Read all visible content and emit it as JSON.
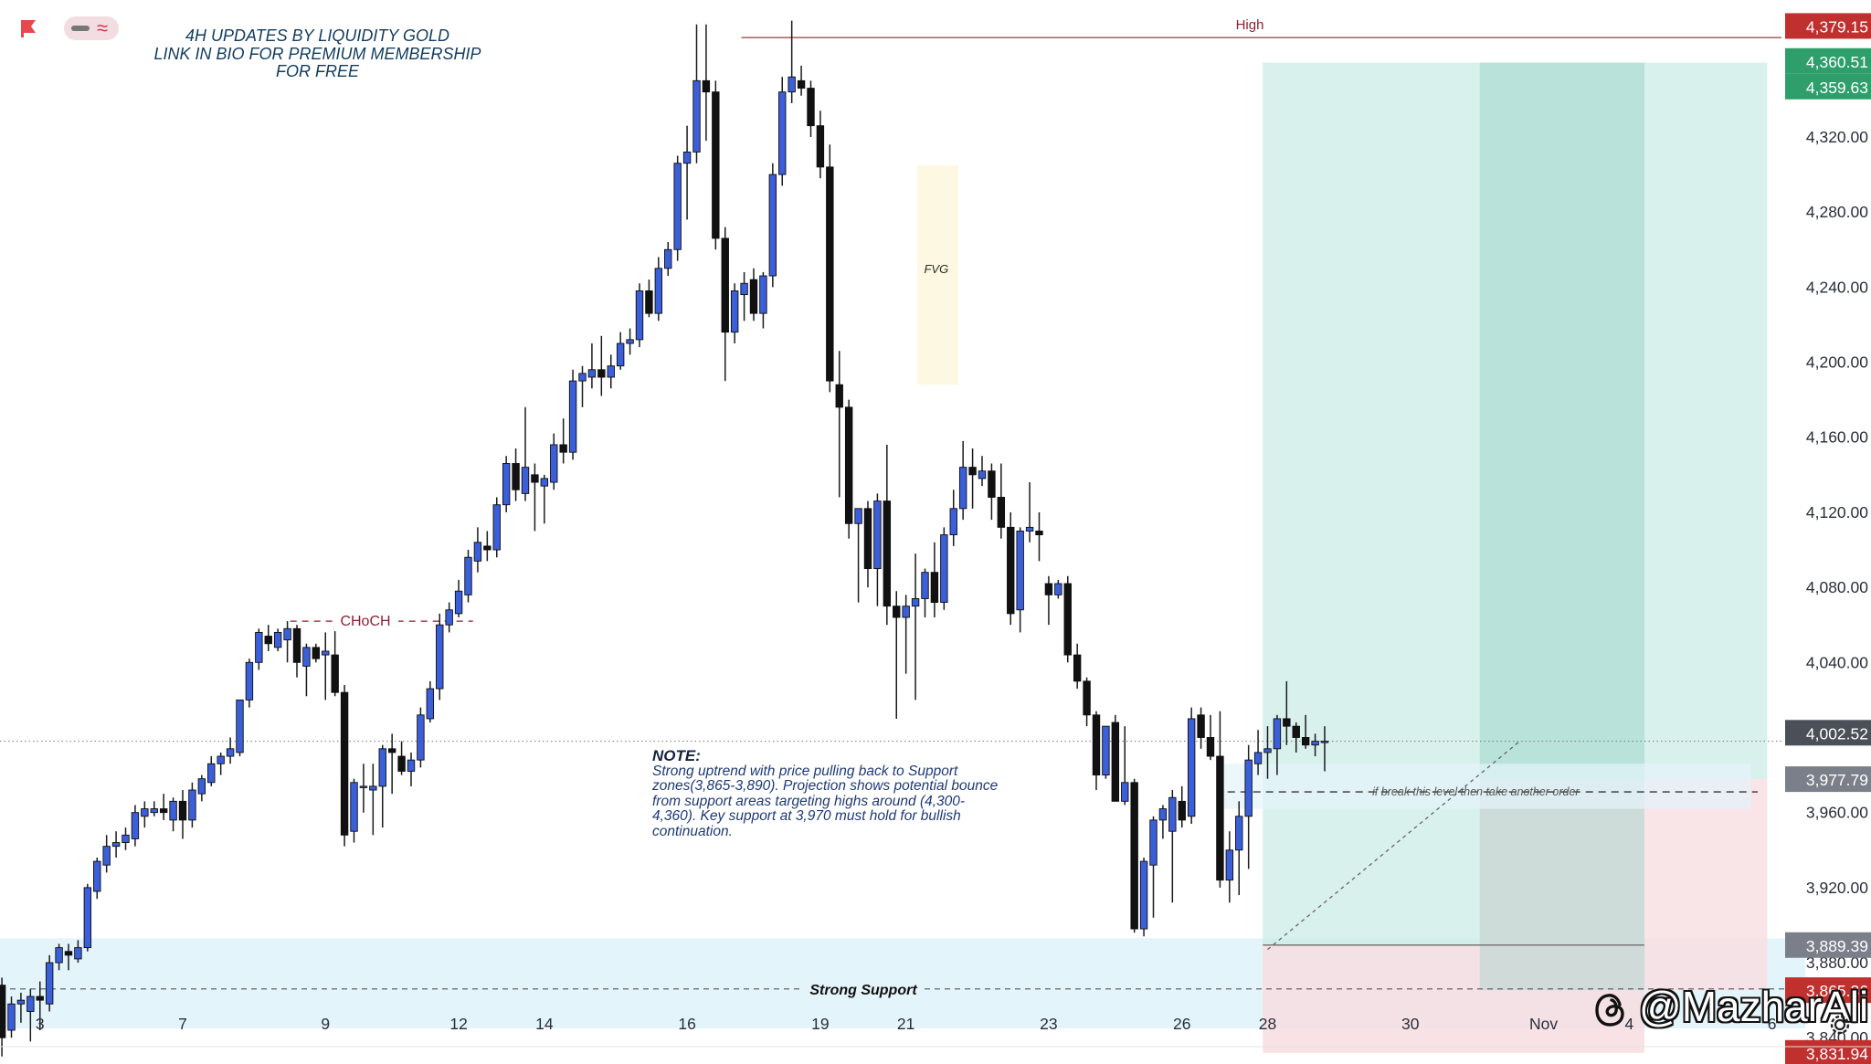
{
  "header": {
    "line1": "4H UPDATES BY LIQUIDITY GOLD",
    "line2": "LINK IN BIO FOR PREMIUM MEMBERSHIP",
    "line3": "FOR FREE"
  },
  "note": {
    "title": "NOTE:",
    "lines": [
      "Strong uptrend with price pulling back to Support",
      "zones(3,865-3,890). Projection shows potential bounce",
      "from support areas targeting highs around (4,300-",
      "4,360). Key support at 3,970 must hold for bullish",
      "continuation."
    ]
  },
  "watermark": {
    "text": "@MazharAli",
    "icon": "threads-icon"
  },
  "toolbar_icons": [
    "flag-icon",
    "minus-icon",
    "wave-icon"
  ],
  "colors": {
    "bull": "#3b5fd9",
    "bear": "#111111",
    "take_profit_zone": "#c9ebe4",
    "stop_loss_zone": "#f7dde2",
    "support_zone": "#e4f4fb",
    "fvg_zone": "#fdf8e1",
    "high_line": "#9a3a3a",
    "price_tag_green": "#2e9e6b",
    "price_tag_red": "#c0302f",
    "price_tag_gray": "#7b7f8a",
    "price_tag_dark": "#4b4f58"
  },
  "chart_data": {
    "type": "candlestick",
    "timeframe": "4H",
    "ylim": [
      3826,
      4393
    ],
    "y_ticks": [
      3840,
      3880,
      3920,
      3960,
      4000,
      4040,
      4080,
      4120,
      4160,
      4200,
      4240,
      4280,
      4320
    ],
    "y_tick_labels": [
      "3,840.00",
      "3,880.00",
      "3,920.00",
      "3,960.00",
      "4,000.00",
      "4,040.00",
      "4,080.00",
      "4,120.00",
      "4,160.00",
      "4,200.00",
      "4,240.00",
      "4,280.00",
      "4,320.00"
    ],
    "x_range": [
      -0.2,
      187
    ],
    "x_ticks": [
      {
        "label": "3",
        "bar": 4
      },
      {
        "label": "7",
        "bar": 19
      },
      {
        "label": "9",
        "bar": 34
      },
      {
        "label": "12",
        "bar": 48
      },
      {
        "label": "14",
        "bar": 57
      },
      {
        "label": "16",
        "bar": 72
      },
      {
        "label": "19",
        "bar": 86
      },
      {
        "label": "21",
        "bar": 95
      },
      {
        "label": "23",
        "bar": 110
      },
      {
        "label": "26",
        "bar": 124
      },
      {
        "label": "28",
        "bar": 133
      },
      {
        "label": "30",
        "bar": 148
      },
      {
        "label": "Nov",
        "bar": 162
      },
      {
        "label": "4",
        "bar": 171
      },
      {
        "label": "6",
        "bar": 186
      }
    ],
    "candles": [
      [
        3868,
        3872,
        3830,
        3840
      ],
      [
        3844,
        3862,
        3840,
        3858
      ],
      [
        3858,
        3864,
        3848,
        3860
      ],
      [
        3854,
        3866,
        3838,
        3862
      ],
      [
        3862,
        3870,
        3844,
        3860
      ],
      [
        3858,
        3884,
        3854,
        3880
      ],
      [
        3880,
        3890,
        3876,
        3888
      ],
      [
        3886,
        3890,
        3876,
        3884
      ],
      [
        3882,
        3892,
        3880,
        3888
      ],
      [
        3888,
        3922,
        3886,
        3920
      ],
      [
        3918,
        3936,
        3914,
        3934
      ],
      [
        3932,
        3948,
        3928,
        3942
      ],
      [
        3942,
        3950,
        3936,
        3944
      ],
      [
        3944,
        3952,
        3940,
        3948
      ],
      [
        3946,
        3964,
        3942,
        3960
      ],
      [
        3958,
        3966,
        3952,
        3962
      ],
      [
        3960,
        3966,
        3958,
        3962
      ],
      [
        3962,
        3970,
        3956,
        3960
      ],
      [
        3956,
        3968,
        3950,
        3966
      ],
      [
        3966,
        3972,
        3946,
        3956
      ],
      [
        3956,
        3976,
        3952,
        3972
      ],
      [
        3970,
        3980,
        3966,
        3978
      ],
      [
        3976,
        3990,
        3974,
        3986
      ],
      [
        3986,
        3992,
        3980,
        3990
      ],
      [
        3990,
        4000,
        3986,
        3994
      ],
      [
        3992,
        4020,
        3990,
        4020
      ],
      [
        4020,
        4042,
        4016,
        4040
      ],
      [
        4040,
        4058,
        4036,
        4056
      ],
      [
        4054,
        4060,
        4046,
        4050
      ],
      [
        4048,
        4058,
        4046,
        4056
      ],
      [
        4052,
        4062,
        4040,
        4058
      ],
      [
        4058,
        4060,
        4032,
        4040
      ],
      [
        4038,
        4050,
        4022,
        4048
      ],
      [
        4048,
        4050,
        4040,
        4042
      ],
      [
        4044,
        4056,
        4020,
        4046
      ],
      [
        4044,
        4060,
        4022,
        4024
      ],
      [
        4024,
        4028,
        3942,
        3948
      ],
      [
        3950,
        3978,
        3944,
        3976
      ],
      [
        3974,
        3986,
        3960,
        3974
      ],
      [
        3972,
        3986,
        3948,
        3974
      ],
      [
        3974,
        3996,
        3952,
        3994
      ],
      [
        3994,
        4002,
        3970,
        3992
      ],
      [
        3990,
        3998,
        3980,
        3982
      ],
      [
        3982,
        3992,
        3974,
        3988
      ],
      [
        3988,
        4016,
        3984,
        4012
      ],
      [
        4010,
        4030,
        4008,
        4026
      ],
      [
        4026,
        4066,
        4020,
        4060
      ],
      [
        4060,
        4072,
        4056,
        4068
      ],
      [
        4066,
        4084,
        4064,
        4078
      ],
      [
        4076,
        4100,
        4072,
        4096
      ],
      [
        4094,
        4112,
        4088,
        4104
      ],
      [
        4102,
        4110,
        4094,
        4100
      ],
      [
        4100,
        4128,
        4096,
        4124
      ],
      [
        4124,
        4150,
        4120,
        4146
      ],
      [
        4146,
        4154,
        4126,
        4132
      ],
      [
        4130,
        4176,
        4126,
        4144
      ],
      [
        4140,
        4146,
        4110,
        4136
      ],
      [
        4134,
        4140,
        4114,
        4138
      ],
      [
        4136,
        4162,
        4132,
        4156
      ],
      [
        4156,
        4170,
        4146,
        4152
      ],
      [
        4152,
        4196,
        4148,
        4190
      ],
      [
        4190,
        4198,
        4176,
        4194
      ],
      [
        4192,
        4210,
        4186,
        4196
      ],
      [
        4196,
        4214,
        4182,
        4192
      ],
      [
        4192,
        4204,
        4186,
        4198
      ],
      [
        4198,
        4216,
        4196,
        4210
      ],
      [
        4210,
        4218,
        4204,
        4212
      ],
      [
        4212,
        4242,
        4208,
        4238
      ],
      [
        4238,
        4244,
        4224,
        4226
      ],
      [
        4226,
        4256,
        4222,
        4250
      ],
      [
        4250,
        4264,
        4246,
        4260
      ],
      [
        4260,
        4310,
        4254,
        4306
      ],
      [
        4306,
        4326,
        4276,
        4312
      ],
      [
        4312,
        4380,
        4306,
        4350
      ],
      [
        4350,
        4380,
        4318,
        4344
      ],
      [
        4344,
        4350,
        4260,
        4266
      ],
      [
        4266,
        4272,
        4190,
        4216
      ],
      [
        4216,
        4242,
        4210,
        4238
      ],
      [
        4236,
        4248,
        4222,
        4242
      ],
      [
        4244,
        4250,
        4222,
        4226
      ],
      [
        4226,
        4248,
        4218,
        4246
      ],
      [
        4246,
        4306,
        4240,
        4300
      ],
      [
        4300,
        4352,
        4294,
        4344
      ],
      [
        4344,
        4382,
        4338,
        4352
      ],
      [
        4350,
        4358,
        4342,
        4346
      ],
      [
        4346,
        4350,
        4320,
        4326
      ],
      [
        4326,
        4334,
        4298,
        4304
      ],
      [
        4304,
        4316,
        4184,
        4190
      ],
      [
        4188,
        4206,
        4128,
        4176
      ],
      [
        4176,
        4180,
        4106,
        4114
      ],
      [
        4114,
        4122,
        4072,
        4122
      ],
      [
        4122,
        4126,
        4080,
        4090
      ],
      [
        4090,
        4130,
        4070,
        4126
      ],
      [
        4126,
        4156,
        4060,
        4070
      ],
      [
        4070,
        4078,
        4010,
        4064
      ],
      [
        4064,
        4076,
        4034,
        4070
      ],
      [
        4070,
        4098,
        4020,
        4074
      ],
      [
        4074,
        4090,
        4064,
        4088
      ],
      [
        4088,
        4104,
        4064,
        4072
      ],
      [
        4072,
        4112,
        4068,
        4108
      ],
      [
        4108,
        4132,
        4102,
        4122
      ],
      [
        4122,
        4158,
        4116,
        4144
      ],
      [
        4144,
        4154,
        4122,
        4140
      ],
      [
        4138,
        4150,
        4134,
        4142
      ],
      [
        4142,
        4146,
        4116,
        4128
      ],
      [
        4128,
        4146,
        4106,
        4112
      ],
      [
        4112,
        4120,
        4060,
        4066
      ],
      [
        4068,
        4112,
        4056,
        4110
      ],
      [
        4110,
        4136,
        4104,
        4112
      ],
      [
        4110,
        4120,
        4094,
        4108
      ],
      [
        4082,
        4086,
        4060,
        4076
      ],
      [
        4076,
        4084,
        4074,
        4082
      ],
      [
        4082,
        4086,
        4040,
        4044
      ],
      [
        4044,
        4050,
        4026,
        4030
      ],
      [
        4030,
        4032,
        4006,
        4012
      ],
      [
        4012,
        4014,
        3972,
        3980
      ],
      [
        3980,
        4006,
        3978,
        4006
      ],
      [
        4008,
        4012,
        3966,
        3966
      ],
      [
        3966,
        4006,
        3964,
        3976
      ],
      [
        3976,
        3978,
        3896,
        3898
      ],
      [
        3898,
        3936,
        3894,
        3934
      ],
      [
        3932,
        3958,
        3904,
        3956
      ],
      [
        3956,
        3964,
        3946,
        3962
      ],
      [
        3950,
        3972,
        3912,
        3968
      ],
      [
        3966,
        3974,
        3952,
        3956
      ],
      [
        3958,
        4016,
        3954,
        4010
      ],
      [
        4012,
        4016,
        3994,
        4000
      ],
      [
        4000,
        4012,
        3988,
        3990
      ],
      [
        3990,
        4014,
        3920,
        3924
      ],
      [
        3924,
        3950,
        3912,
        3940
      ],
      [
        3940,
        3966,
        3916,
        3958
      ],
      [
        3958,
        3996,
        3930,
        3988
      ],
      [
        3986,
        4004,
        3980,
        3992
      ],
      [
        3992,
        4006,
        3978,
        3994
      ],
      [
        3994,
        4012,
        3980,
        4010
      ],
      [
        4010,
        4030,
        3996,
        4006
      ],
      [
        4006,
        4008,
        3992,
        4000
      ],
      [
        4000,
        4012,
        3994,
        3996
      ],
      [
        3996,
        4002,
        3990,
        3998
      ],
      [
        3998,
        4006,
        3982,
        3998
      ]
    ],
    "annotations": [
      {
        "text": "High",
        "price": 4373
      },
      {
        "text": "CHoCH",
        "price": 4062
      },
      {
        "text": "FVG",
        "price": 4250
      },
      {
        "text": "Strong Support",
        "price": 3866
      },
      {
        "text": "if break this level then take another order",
        "price": 3971
      }
    ],
    "price_tags": [
      {
        "label": "4,379.15",
        "price": 4379.15,
        "style": "red"
      },
      {
        "label": "4,360.51",
        "price": 4360.51,
        "style": "green"
      },
      {
        "label": "4,359.63",
        "price": 4359.63,
        "style": "green"
      },
      {
        "label": "4,002.52",
        "price": 4002.52,
        "style": "dark"
      },
      {
        "label": "3,977.79",
        "price": 3977.79,
        "style": "gray"
      },
      {
        "label": "3,889.39",
        "price": 3889.39,
        "style": "gray"
      },
      {
        "label": "3,865.36",
        "price": 3865.36,
        "style": "red"
      },
      {
        "label": "3,831.94",
        "price": 3831.94,
        "style": "red"
      }
    ]
  }
}
